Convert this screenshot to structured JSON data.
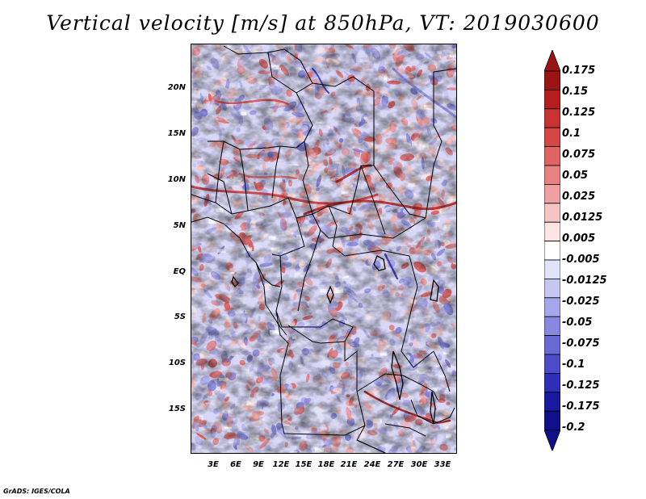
{
  "title": "Vertical velocity [m/s] at 850hPa, VT: 2019030600",
  "footer": "GrADS: IGES/COLA",
  "map": {
    "lat_labels": [
      "20N",
      "15N",
      "10N",
      "5N",
      "EQ",
      "5S",
      "10S",
      "15S"
    ],
    "lon_labels": [
      "3E",
      "6E",
      "9E",
      "12E",
      "15E",
      "18E",
      "21E",
      "24E",
      "27E",
      "30E",
      "33E"
    ],
    "lon_range": [
      0,
      35
    ],
    "lat_range": [
      -20,
      25
    ]
  },
  "colorbar": {
    "labels": [
      "0.175",
      "0.15",
      "0.125",
      "0.1",
      "0.075",
      "0.05",
      "0.025",
      "0.0125",
      "0.005",
      "-0.005",
      "-0.0125",
      "-0.025",
      "-0.05",
      "-0.075",
      "-0.1",
      "-0.125",
      "-0.175",
      "-0.2"
    ],
    "colors": [
      "#9b1414",
      "#b41e1e",
      "#c83232",
      "#d74646",
      "#e06464",
      "#e88282",
      "#f0a0a0",
      "#f6c4c4",
      "#fbe4e4",
      "#ffffff",
      "#e2e2f8",
      "#c6c6f0",
      "#a6a6ea",
      "#8888e0",
      "#6a6ad6",
      "#4c4cc8",
      "#2e2eb8",
      "#1a1aa0",
      "#10108a"
    ],
    "max_color": "#9b1414",
    "min_color": "#10108a"
  }
}
